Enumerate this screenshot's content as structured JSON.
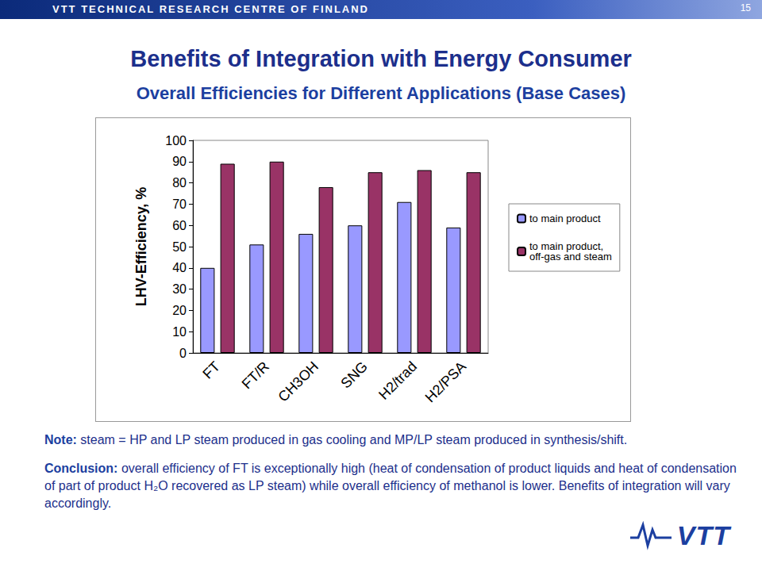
{
  "header": {
    "organization": "VTT TECHNICAL RESEARCH CENTRE OF FINLAND",
    "page": "15"
  },
  "title": "Benefits of Integration with Energy Consumer",
  "subtitle": "Overall Efficiencies for Different Applications (Base Cases)",
  "chart_data": {
    "type": "bar",
    "y_label": "LHV-Efficiency, %",
    "categories": [
      "FT",
      "FT/R",
      "CH3OH",
      "SNG",
      "H2/trad",
      "H2/PSA"
    ],
    "series": [
      {
        "name": "to main product",
        "color": "#9999ff",
        "values": [
          40,
          51,
          56,
          60,
          71,
          59
        ]
      },
      {
        "name": "to main product, off-gas and steam",
        "color": "#993366",
        "values": [
          89,
          90,
          78,
          85,
          86,
          85
        ]
      }
    ],
    "ylim": [
      0,
      100
    ],
    "yticks": [
      0,
      10,
      20,
      30,
      40,
      50,
      60,
      70,
      80,
      90,
      100
    ],
    "grid": false,
    "legend": "right"
  },
  "note": {
    "label": "Note:",
    "text": "steam = HP and LP steam produced in gas cooling and MP/LP steam produced in synthesis/shift."
  },
  "conclusion": {
    "label": "Conclusion:",
    "text": "overall efficiency of FT is exceptionally high (heat of condensation of product liquids and heat of condensation of part of product H₂O recovered as LP steam) while overall efficiency of methanol is lower. Benefits of integration will vary accordingly."
  },
  "logo": "VTT"
}
